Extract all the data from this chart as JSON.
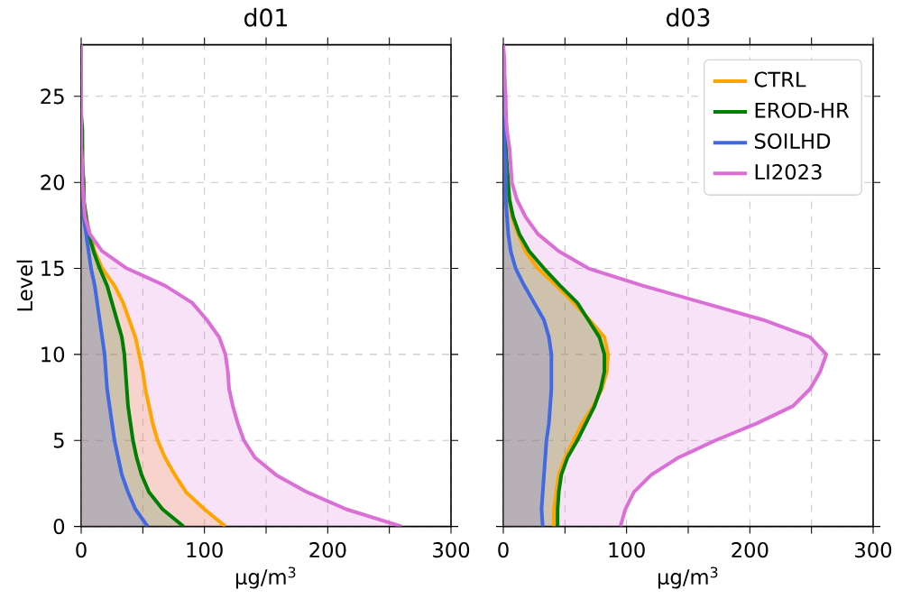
{
  "chart_data": [
    {
      "type": "area",
      "orientation": "horizontal",
      "title": "d01",
      "xlabel": "μg/m$^{3}$",
      "ylabel": "Level",
      "xlim": [
        0,
        300
      ],
      "ylim": [
        0,
        28
      ],
      "xticks": [
        0,
        {
          "value": 50,
          "label": null
        },
        100,
        {
          "value": 150,
          "label": null
        },
        200,
        {
          "value": 250,
          "label": null
        },
        300
      ],
      "yticks": [
        0,
        5,
        10,
        15,
        20,
        25
      ],
      "grid": true,
      "x": [
        0,
        1,
        2,
        3,
        4,
        5,
        6,
        7,
        8,
        9,
        10,
        11,
        12,
        13,
        14,
        15,
        16,
        17,
        18,
        19,
        20,
        21,
        22,
        23,
        24,
        25,
        26,
        27,
        28
      ],
      "series": [
        {
          "color": "#ffa500",
          "values": [
            117,
            100,
            85,
            76,
            68,
            62,
            58,
            55,
            52,
            50,
            47,
            44,
            39,
            34,
            27,
            17,
            11,
            7,
            4,
            2,
            2,
            1,
            1,
            0,
            0,
            0,
            0,
            0,
            0
          ]
        },
        {
          "color": "#008000",
          "values": [
            83,
            66,
            55,
            49,
            45,
            42,
            40,
            38,
            37,
            36,
            35,
            33,
            29,
            25,
            21,
            15,
            10,
            6,
            4,
            2,
            2,
            1,
            1,
            1,
            0,
            0,
            0,
            0,
            0
          ]
        },
        {
          "color": "#4169e1",
          "values": [
            54,
            44,
            38,
            33,
            30,
            27,
            25,
            23,
            21,
            20,
            19,
            17,
            15,
            13,
            11,
            8,
            6,
            4,
            2,
            2,
            1,
            1,
            0,
            0,
            0,
            0,
            0,
            0,
            0
          ]
        },
        {
          "color": "#da70d6",
          "values": [
            260,
            215,
            183,
            158,
            141,
            132,
            127,
            123,
            120,
            119,
            117,
            112,
            102,
            90,
            68,
            37,
            17,
            7,
            3,
            2,
            1,
            1,
            0,
            0,
            0,
            0,
            0,
            0,
            0
          ]
        }
      ]
    },
    {
      "type": "area",
      "orientation": "horizontal",
      "title": "d03",
      "xlabel": "μg/m$^{3}$",
      "xlim": [
        0,
        300
      ],
      "ylim": [
        0,
        28
      ],
      "xticks": [
        0,
        {
          "value": 50,
          "label": null
        },
        100,
        {
          "value": 150,
          "label": null
        },
        200,
        {
          "value": 250,
          "label": null
        },
        300
      ],
      "yticks": [
        0,
        5,
        10,
        15,
        20,
        25
      ],
      "grid": true,
      "tick_labels": "x",
      "legend": "top right",
      "x": [
        0,
        1,
        2,
        3,
        4,
        5,
        6,
        7,
        8,
        9,
        10,
        11,
        12,
        13,
        14,
        15,
        16,
        17,
        18,
        19,
        20,
        21,
        22,
        23,
        24,
        25,
        26,
        27,
        28
      ],
      "series": [
        {
          "name": "CTRL",
          "color": "#ffa500",
          "values": [
            41,
            41,
            43,
            45,
            50,
            57,
            64,
            73,
            80,
            84,
            85,
            82,
            70,
            57,
            43,
            28,
            18,
            12,
            7,
            5,
            3,
            2,
            2,
            1,
            1,
            0,
            0,
            0,
            0
          ]
        },
        {
          "name": "EROD-HR",
          "color": "#008000",
          "values": [
            44,
            44,
            45,
            47,
            52,
            60,
            67,
            74,
            79,
            82,
            82,
            78,
            69,
            60,
            46,
            33,
            21,
            13,
            8,
            5,
            4,
            3,
            2,
            2,
            2,
            1,
            1,
            0,
            0
          ]
        },
        {
          "name": "SOILHD",
          "color": "#4169e1",
          "values": [
            32,
            31,
            32,
            33,
            34,
            35,
            37,
            38,
            39,
            39,
            39,
            37,
            33,
            25,
            17,
            10,
            6,
            4,
            3,
            2,
            2,
            2,
            1,
            1,
            0,
            0,
            0,
            0,
            0
          ]
        },
        {
          "name": "LI2023",
          "color": "#da70d6",
          "values": [
            95,
            99,
            106,
            120,
            142,
            172,
            206,
            235,
            249,
            257,
            262,
            249,
            211,
            162,
            113,
            69,
            45,
            28,
            18,
            11,
            7,
            6,
            5,
            3,
            2,
            2,
            1,
            1,
            0
          ]
        }
      ]
    }
  ]
}
